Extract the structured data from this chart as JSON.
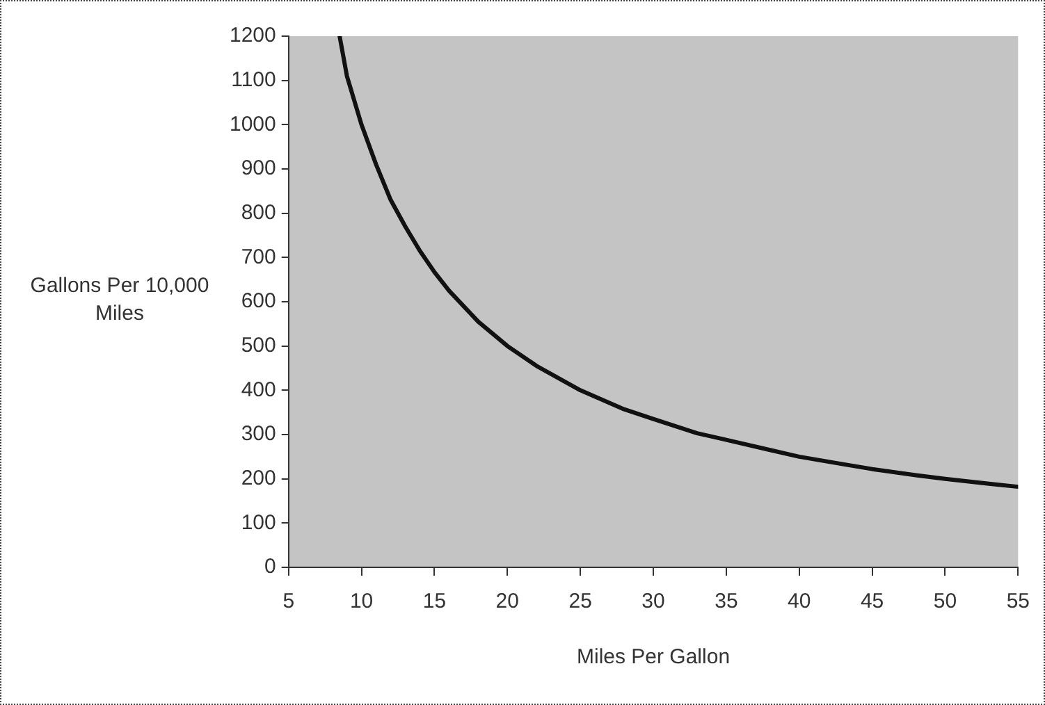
{
  "chart_data": {
    "type": "line",
    "xlabel": "Miles Per Gallon",
    "ylabel": "Gallons Per 10,000 Miles",
    "x": [
      8.5,
      9,
      10,
      11,
      12,
      13,
      14,
      15,
      16,
      17,
      18,
      20,
      22,
      25,
      28,
      30,
      33,
      35,
      38,
      40,
      43,
      45,
      48,
      50,
      53,
      55
    ],
    "series": [
      {
        "color": "#111111",
        "values": [
          1200,
          1110,
          1000,
          910,
          830,
          770,
          715,
          667,
          625,
          590,
          555,
          500,
          455,
          400,
          357,
          335,
          303,
          288,
          265,
          250,
          233,
          222,
          208,
          200,
          189,
          182
        ]
      }
    ],
    "xlim": [
      5,
      55
    ],
    "xticks": [
      5,
      10,
      15,
      20,
      25,
      30,
      35,
      40,
      45,
      50,
      55
    ],
    "ylim": [
      0,
      1200
    ],
    "yticks": [
      0,
      100,
      200,
      300,
      400,
      500,
      600,
      700,
      800,
      900,
      1000,
      1100,
      1200
    ],
    "grid": false,
    "legend": false,
    "marker": "none",
    "line_style": "solid"
  }
}
